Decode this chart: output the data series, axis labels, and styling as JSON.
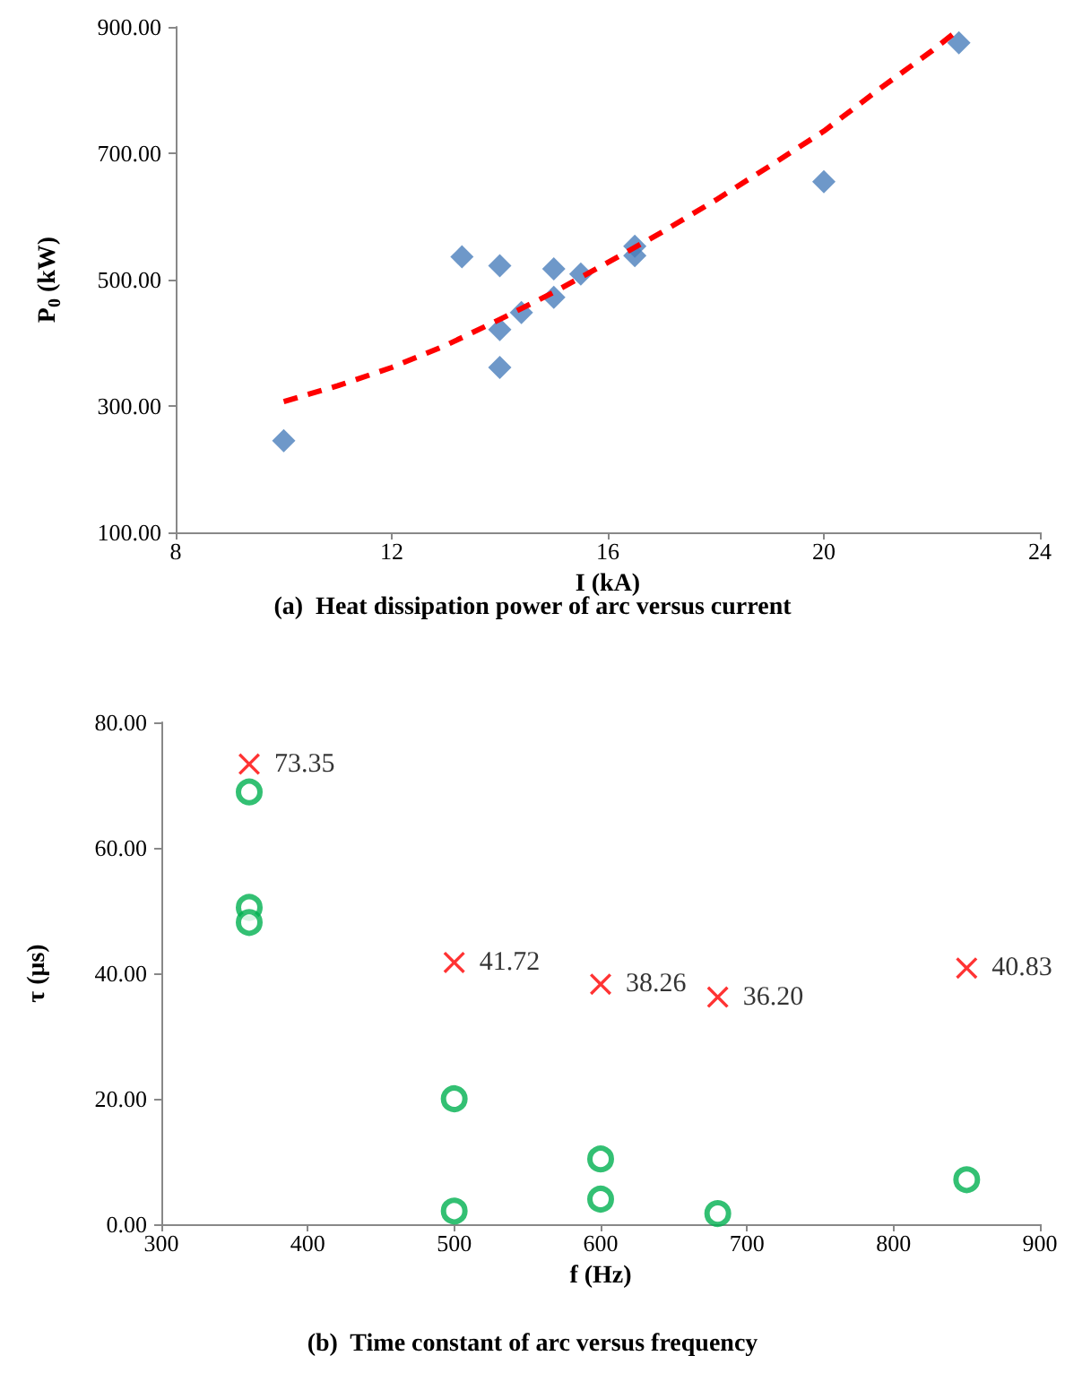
{
  "chart_data": [
    {
      "type": "scatter",
      "title": "(a)  Heat dissipation power of arc versus current",
      "xlabel": "I (kA)",
      "ylabel": "P$_{0}$ (kW)",
      "xlim": [
        8,
        24
      ],
      "xticks": [
        8,
        12,
        16,
        20,
        24
      ],
      "ylim": [
        100,
        900
      ],
      "yticks": [
        {
          "value": 100,
          "label": "100.00"
        },
        {
          "value": 300,
          "label": "300.00"
        },
        {
          "value": 500,
          "label": "500.00"
        },
        {
          "value": 700,
          "label": "700.00"
        },
        {
          "value": 900,
          "label": "900.00"
        }
      ],
      "grid": false,
      "series": [
        {
          "type": "scatter",
          "marker": "diamond",
          "color": "#4a7ebb",
          "x": [
            10,
            13.3,
            14,
            14,
            14,
            14.4,
            15,
            15,
            15.5,
            16.5,
            16.5,
            20,
            22.5
          ],
          "values": [
            245,
            536,
            522,
            421,
            361,
            448,
            517,
            472,
            509,
            553,
            538,
            655,
            875
          ]
        },
        {
          "type": "line",
          "marker": "none",
          "line_style": "dashed",
          "color": "#ff0000",
          "x": [
            10,
            11,
            12,
            13,
            14,
            15,
            16,
            17,
            18,
            19,
            20,
            21,
            22,
            22.5
          ],
          "values": [
            307,
            332,
            361,
            396,
            437,
            480,
            527,
            575,
            626,
            680,
            735,
            800,
            862,
            896
          ]
        }
      ]
    },
    {
      "type": "scatter",
      "title": "(b)  Time constant of arc versus frequency",
      "xlabel": "f (Hz)",
      "ylabel": "τ (μs)",
      "xlim": [
        300,
        900
      ],
      "xticks": [
        300,
        400,
        500,
        600,
        700,
        800,
        900
      ],
      "ylim": [
        0,
        80
      ],
      "yticks": [
        {
          "value": 0,
          "label": "0.00"
        },
        {
          "value": 20,
          "label": "20.00"
        },
        {
          "value": 40,
          "label": "40.00"
        },
        {
          "value": 60,
          "label": "60.00"
        },
        {
          "value": 80,
          "label": "80.00"
        }
      ],
      "grid": false,
      "series": [
        {
          "type": "scatter",
          "marker": "cross",
          "color": "#ff0000",
          "x": [
            360,
            500,
            600,
            680,
            850
          ],
          "values": [
            73.35,
            41.72,
            38.26,
            36.2,
            40.83
          ],
          "value_labels": [
            "73.35",
            "41.72",
            "38.26",
            "36.20",
            "40.83"
          ]
        },
        {
          "type": "scatter",
          "marker": "circle",
          "color": "#00b050",
          "x": [
            360,
            360,
            360,
            500,
            500,
            600,
            600,
            680,
            850
          ],
          "values": [
            68.9,
            50.5,
            48.1,
            20.0,
            2.1,
            10.4,
            4.0,
            1.7,
            7.1
          ]
        }
      ]
    }
  ]
}
